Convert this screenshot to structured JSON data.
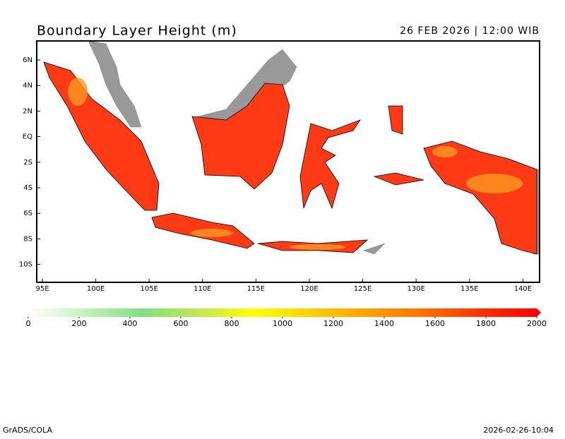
{
  "title": "Boundary Layer Height (m)",
  "valid_time": "26 FEB 2026 | 12:00 WIB",
  "lat_labels": [
    "6N",
    "4N",
    "2N",
    "EQ",
    "2S",
    "4S",
    "6S",
    "8S",
    "10S"
  ],
  "lon_labels": [
    "95E",
    "100E",
    "105E",
    "110E",
    "115E",
    "120E",
    "125E",
    "130E",
    "135E",
    "140E"
  ],
  "colorbar": {
    "lim": [
      0,
      2000
    ],
    "ticks": [
      0,
      200,
      400,
      600,
      800,
      1000,
      1200,
      1400,
      1600,
      1800,
      2000
    ],
    "colors": [
      "#ffffff",
      "#c8f0c0",
      "#80e080",
      "#c0e850",
      "#ffff00",
      "#ffd000",
      "#ffa000",
      "#ff7000",
      "#ff3000",
      "#ff0000"
    ]
  },
  "footer_left": "GrADS/COLA",
  "footer_right": "2026-02-26-10:04"
}
